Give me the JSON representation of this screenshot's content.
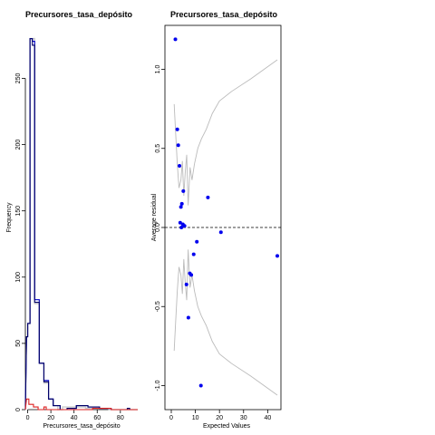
{
  "chart_data": [
    {
      "type": "histogram",
      "title": "Precursores_tasa_depósito",
      "xlabel": "Precursores_tasa_depósito",
      "ylabel": "Frequency",
      "xlim": [
        -2,
        95
      ],
      "ylim": [
        0,
        290
      ],
      "xticks": [
        0,
        20,
        40,
        60,
        80
      ],
      "yticks": [
        0,
        50,
        100,
        150,
        200,
        250
      ],
      "series": [
        {
          "color": "#cccccc",
          "steps": [
            [
              -2,
              0
            ],
            [
              -1,
              55
            ],
            [
              0,
              55
            ],
            [
              0,
              65
            ],
            [
              2,
              65
            ],
            [
              2,
              280
            ],
            [
              6,
              280
            ],
            [
              6,
              80
            ],
            [
              10,
              80
            ],
            [
              10,
              35
            ],
            [
              14,
              35
            ],
            [
              14,
              20
            ],
            [
              18,
              20
            ],
            [
              18,
              8
            ],
            [
              22,
              8
            ],
            [
              22,
              3
            ],
            [
              26,
              3
            ],
            [
              26,
              0
            ],
            [
              30,
              0
            ],
            [
              30,
              2
            ],
            [
              50,
              2
            ],
            [
              50,
              1
            ],
            [
              70,
              1
            ],
            [
              70,
              0
            ],
            [
              95,
              0
            ]
          ]
        },
        {
          "color": "#0000cc",
          "steps": [
            [
              -2,
              0
            ],
            [
              -1,
              55
            ],
            [
              0,
              55
            ],
            [
              0,
              65
            ],
            [
              2,
              65
            ],
            [
              2,
              280
            ],
            [
              4,
              280
            ],
            [
              4,
              278
            ],
            [
              6,
              278
            ],
            [
              6,
              83
            ],
            [
              10,
              83
            ],
            [
              10,
              35
            ],
            [
              14,
              35
            ],
            [
              14,
              22
            ],
            [
              18,
              22
            ],
            [
              18,
              8
            ],
            [
              22,
              8
            ],
            [
              22,
              3
            ],
            [
              28,
              3
            ],
            [
              28,
              0
            ],
            [
              34,
              0
            ],
            [
              34,
              1
            ],
            [
              42,
              1
            ],
            [
              42,
              3
            ],
            [
              52,
              3
            ],
            [
              52,
              2
            ],
            [
              62,
              2
            ],
            [
              62,
              1
            ],
            [
              72,
              1
            ],
            [
              72,
              0
            ],
            [
              86,
              0
            ],
            [
              86,
              1
            ],
            [
              88,
              1
            ],
            [
              88,
              0
            ],
            [
              95,
              0
            ]
          ]
        },
        {
          "color": "#000066",
          "steps": [
            [
              -2,
              0
            ],
            [
              -1,
              55
            ],
            [
              0,
              55
            ],
            [
              0,
              65
            ],
            [
              2,
              65
            ],
            [
              2,
              280
            ],
            [
              4,
              280
            ],
            [
              4,
              275
            ],
            [
              6,
              275
            ],
            [
              6,
              81
            ],
            [
              10,
              81
            ],
            [
              10,
              35
            ],
            [
              14,
              35
            ],
            [
              14,
              21
            ],
            [
              18,
              21
            ],
            [
              18,
              8
            ],
            [
              22,
              8
            ],
            [
              22,
              3
            ],
            [
              28,
              3
            ],
            [
              28,
              0
            ],
            [
              34,
              0
            ],
            [
              34,
              1
            ],
            [
              42,
              1
            ],
            [
              42,
              3
            ],
            [
              52,
              3
            ],
            [
              52,
              2
            ],
            [
              62,
              2
            ],
            [
              62,
              1
            ],
            [
              72,
              1
            ],
            [
              72,
              0
            ],
            [
              86,
              0
            ],
            [
              86,
              1
            ],
            [
              88,
              1
            ],
            [
              88,
              0
            ],
            [
              95,
              0
            ]
          ]
        },
        {
          "color": "#dd2222",
          "steps": [
            [
              -2,
              0
            ],
            [
              -1,
              8
            ],
            [
              1,
              8
            ],
            [
              1,
              4
            ],
            [
              5,
              4
            ],
            [
              5,
              2
            ],
            [
              9,
              2
            ],
            [
              9,
              0
            ],
            [
              14,
              0
            ],
            [
              14,
              2
            ],
            [
              16,
              2
            ],
            [
              16,
              0
            ],
            [
              56,
              0
            ],
            [
              56,
              1
            ],
            [
              72,
              1
            ],
            [
              72,
              0
            ],
            [
              95,
              0
            ]
          ]
        }
      ]
    },
    {
      "type": "scatter",
      "title": "Precursores_tasa_depósito",
      "xlabel": "Expected Values",
      "ylabel": "Average residual",
      "xlim": [
        0,
        45
      ],
      "ylim": [
        -1.1,
        1.3
      ],
      "xticks": [
        0,
        10,
        20,
        30,
        40
      ],
      "yticks": [
        -1.0,
        -0.5,
        0.0,
        0.5,
        1.0
      ],
      "points": [
        [
          1.7,
          1.19
        ],
        [
          2.5,
          0.62
        ],
        [
          2.9,
          0.52
        ],
        [
          3.4,
          0.39
        ],
        [
          4.0,
          0.13
        ],
        [
          4.4,
          0.15
        ],
        [
          5.0,
          0.23
        ],
        [
          3.7,
          0.03
        ],
        [
          4.2,
          0.0
        ],
        [
          4.8,
          0.02
        ],
        [
          5.5,
          0.01
        ],
        [
          6.3,
          -0.36
        ],
        [
          7.1,
          -0.57
        ],
        [
          7.7,
          -0.29
        ],
        [
          8.3,
          -0.3
        ],
        [
          9.3,
          -0.17
        ],
        [
          10.6,
          -0.09
        ],
        [
          12.3,
          -1.0
        ],
        [
          15.2,
          0.19
        ],
        [
          20.6,
          -0.03
        ],
        [
          44.0,
          -0.18
        ]
      ],
      "band_upper": [
        [
          1.2,
          0.78
        ],
        [
          1.8,
          0.6
        ],
        [
          2.5,
          0.4
        ],
        [
          3.2,
          0.25
        ],
        [
          4.0,
          0.3
        ],
        [
          4.6,
          0.42
        ],
        [
          5.2,
          0.2
        ],
        [
          5.8,
          0.35
        ],
        [
          6.4,
          0.46
        ],
        [
          7.0,
          0.14
        ],
        [
          7.8,
          0.38
        ],
        [
          8.6,
          0.3
        ],
        [
          9.6,
          0.4
        ],
        [
          11.0,
          0.5
        ],
        [
          12.5,
          0.56
        ],
        [
          14.5,
          0.62
        ],
        [
          17.0,
          0.72
        ],
        [
          20.0,
          0.8
        ],
        [
          25.0,
          0.86
        ],
        [
          33.0,
          0.94
        ],
        [
          44.0,
          1.06
        ]
      ],
      "band_lower": [
        [
          1.2,
          -0.78
        ],
        [
          1.8,
          -0.6
        ],
        [
          2.5,
          -0.4
        ],
        [
          3.2,
          -0.25
        ],
        [
          4.0,
          -0.3
        ],
        [
          4.6,
          -0.42
        ],
        [
          5.2,
          -0.2
        ],
        [
          5.8,
          -0.35
        ],
        [
          6.4,
          -0.46
        ],
        [
          7.0,
          -0.14
        ],
        [
          7.8,
          -0.38
        ],
        [
          8.6,
          -0.3
        ],
        [
          9.6,
          -0.4
        ],
        [
          11.0,
          -0.5
        ],
        [
          12.5,
          -0.56
        ],
        [
          14.5,
          -0.62
        ],
        [
          17.0,
          -0.72
        ],
        [
          20.0,
          -0.8
        ],
        [
          25.0,
          -0.86
        ],
        [
          33.0,
          -0.94
        ],
        [
          44.0,
          -1.06
        ]
      ],
      "reference_line": 0,
      "point_color": "#0000ee",
      "band_color": "#bbbbbb"
    }
  ]
}
